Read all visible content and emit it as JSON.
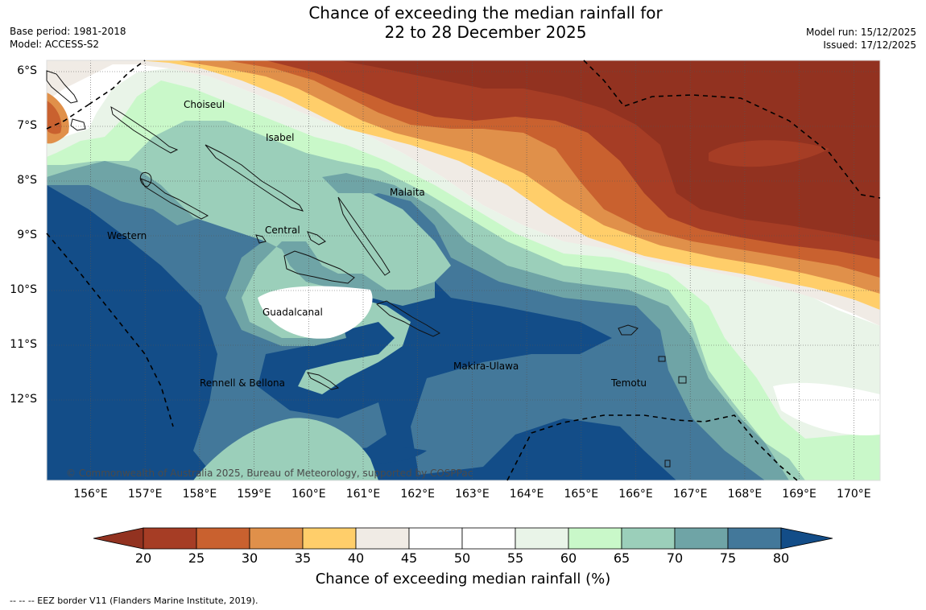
{
  "header": {
    "title_line1": "Chance of exceeding the median rainfall for",
    "title_line2": "22 to 28 December 2025",
    "base_period": "Base period: 1981-2018",
    "model": "Model: ACCESS-S2",
    "model_run": "Model run: 15/12/2025",
    "issued": "Issued: 17/12/2025"
  },
  "map": {
    "lat_labels": [
      "6°S",
      "7°S",
      "8°S",
      "9°S",
      "10°S",
      "11°S",
      "12°S"
    ],
    "lon_labels": [
      "156°E",
      "157°E",
      "158°E",
      "159°E",
      "160°E",
      "161°E",
      "162°E",
      "163°E",
      "164°E",
      "165°E",
      "166°E",
      "167°E",
      "168°E",
      "169°E",
      "170°E"
    ],
    "places": {
      "choiseul": "Choiseul",
      "isabel": "Isabel",
      "malaita": "Malaita",
      "western": "Western",
      "central": "Central",
      "guadalcanal": "Guadalcanal",
      "makira": "Makira-Ulawa",
      "temotu": "Temotu",
      "rennell": "Rennell & Bellona"
    },
    "copyright": "© Commonwealth of Australia 2025, Bureau of Meteorology, supported by COSPPac"
  },
  "colorbar": {
    "ticks": [
      "20",
      "25",
      "30",
      "35",
      "40",
      "45",
      "50",
      "55",
      "60",
      "65",
      "70",
      "75",
      "80"
    ],
    "colors": [
      "#a63d25",
      "#c9612f",
      "#e0904a",
      "#ffce6a",
      "#f0ebe5",
      "#ffffff",
      "#ffffff",
      "#e9f4e8",
      "#c9f8c9",
      "#9bcfba",
      "#6fa4a6",
      "#43789a"
    ],
    "under_color": "#923220",
    "over_color": "#134d88",
    "label": "Chance of exceeding median rainfall (%)"
  },
  "footnote": "--  --  -- EEZ border V11 (Flanders Marine Institute, 2019)."
}
